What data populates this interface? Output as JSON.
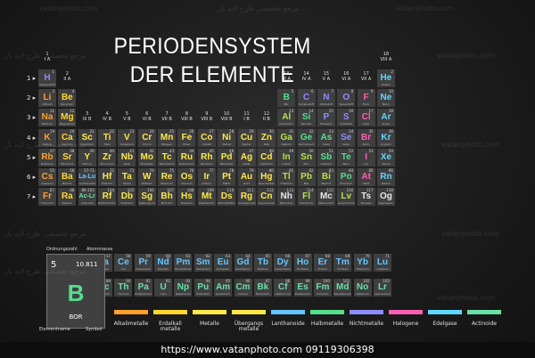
{
  "title": {
    "line1": "PERIODENSYSTEM",
    "line2": "DER ELEMENTE"
  },
  "watermarks": [
    "vatanphoto.com",
    "مرجع تخصصی طرح لایه باز"
  ],
  "group_labels": [
    {
      "g": 1,
      "num": "1",
      "roman": "I A"
    },
    {
      "g": 2,
      "num": "2",
      "roman": "II A"
    },
    {
      "g": 3,
      "num": "3",
      "roman": "III B"
    },
    {
      "g": 4,
      "num": "4",
      "roman": "IV B"
    },
    {
      "g": 5,
      "num": "5",
      "roman": "V B"
    },
    {
      "g": 6,
      "num": "6",
      "roman": "VI B"
    },
    {
      "g": 7,
      "num": "7",
      "roman": "VII B"
    },
    {
      "g": 8,
      "num": "8",
      "roman": "VIII B"
    },
    {
      "g": 9,
      "num": "9",
      "roman": "VIII B"
    },
    {
      "g": 10,
      "num": "10",
      "roman": "VIII B"
    },
    {
      "g": 11,
      "num": "11",
      "roman": "I B"
    },
    {
      "g": 12,
      "num": "12",
      "roman": "II B"
    },
    {
      "g": 13,
      "num": "13",
      "roman": "III A"
    },
    {
      "g": 14,
      "num": "14",
      "roman": "IV A"
    },
    {
      "g": 15,
      "num": "15",
      "roman": "V A"
    },
    {
      "g": 16,
      "num": "16",
      "roman": "VI A"
    },
    {
      "g": 17,
      "num": "17",
      "roman": "VII A"
    },
    {
      "g": 18,
      "num": "18",
      "roman": "VIII A"
    }
  ],
  "period_labels": [
    "1",
    "2",
    "3",
    "4",
    "5",
    "6",
    "7"
  ],
  "categories": {
    "alkali": "#ff9f2f",
    "alkaline": "#ffd52e",
    "transition": "#ffe84a",
    "post": "#b6e24a",
    "metalloid": "#54e08a",
    "nonmetal": "#8f8cff",
    "halogen": "#ff5fb4",
    "noble": "#5fd7ff",
    "lanthanide": "#65c6ff",
    "actinide": "#69e0a6",
    "unknown": "#e8e8e8"
  },
  "elements": [
    {
      "n": 1,
      "s": "H",
      "name": "Wasserstoff",
      "p": 1,
      "g": 1,
      "c": "nonmetal"
    },
    {
      "n": 2,
      "s": "He",
      "name": "Helium",
      "p": 1,
      "g": 18,
      "c": "noble"
    },
    {
      "n": 3,
      "s": "Li",
      "name": "Lithium",
      "p": 2,
      "g": 1,
      "c": "alkali"
    },
    {
      "n": 4,
      "s": "Be",
      "name": "Beryllium",
      "p": 2,
      "g": 2,
      "c": "alkaline"
    },
    {
      "n": 5,
      "s": "B",
      "name": "Bor",
      "p": 2,
      "g": 13,
      "c": "metalloid"
    },
    {
      "n": 6,
      "s": "C",
      "name": "Kohlenstoff",
      "p": 2,
      "g": 14,
      "c": "nonmetal"
    },
    {
      "n": 7,
      "s": "N",
      "name": "Stickstoff",
      "p": 2,
      "g": 15,
      "c": "nonmetal"
    },
    {
      "n": 8,
      "s": "O",
      "name": "Sauerstoff",
      "p": 2,
      "g": 16,
      "c": "nonmetal"
    },
    {
      "n": 9,
      "s": "F",
      "name": "Fluor",
      "p": 2,
      "g": 17,
      "c": "halogen"
    },
    {
      "n": 10,
      "s": "Ne",
      "name": "Neon",
      "p": 2,
      "g": 18,
      "c": "noble"
    },
    {
      "n": 11,
      "s": "Na",
      "name": "Natrium",
      "p": 3,
      "g": 1,
      "c": "alkali"
    },
    {
      "n": 12,
      "s": "Mg",
      "name": "Magnesium",
      "p": 3,
      "g": 2,
      "c": "alkaline"
    },
    {
      "n": 13,
      "s": "Al",
      "name": "Aluminium",
      "p": 3,
      "g": 13,
      "c": "post"
    },
    {
      "n": 14,
      "s": "Si",
      "name": "Silicium",
      "p": 3,
      "g": 14,
      "c": "metalloid"
    },
    {
      "n": 15,
      "s": "P",
      "name": "Phosphor",
      "p": 3,
      "g": 15,
      "c": "nonmetal"
    },
    {
      "n": 16,
      "s": "S",
      "name": "Schwefel",
      "p": 3,
      "g": 16,
      "c": "nonmetal"
    },
    {
      "n": 17,
      "s": "Cl",
      "name": "Chlor",
      "p": 3,
      "g": 17,
      "c": "halogen"
    },
    {
      "n": 18,
      "s": "Ar",
      "name": "Argon",
      "p": 3,
      "g": 18,
      "c": "noble"
    },
    {
      "n": 19,
      "s": "K",
      "name": "Kalium",
      "p": 4,
      "g": 1,
      "c": "alkali"
    },
    {
      "n": 20,
      "s": "Ca",
      "name": "Calcium",
      "p": 4,
      "g": 2,
      "c": "alkaline"
    },
    {
      "n": 21,
      "s": "Sc",
      "name": "Scandium",
      "p": 4,
      "g": 3,
      "c": "transition"
    },
    {
      "n": 22,
      "s": "Ti",
      "name": "Titan",
      "p": 4,
      "g": 4,
      "c": "transition"
    },
    {
      "n": 23,
      "s": "V",
      "name": "Vanadium",
      "p": 4,
      "g": 5,
      "c": "transition"
    },
    {
      "n": 24,
      "s": "Cr",
      "name": "Chrom",
      "p": 4,
      "g": 6,
      "c": "transition"
    },
    {
      "n": 25,
      "s": "Mn",
      "name": "Mangan",
      "p": 4,
      "g": 7,
      "c": "transition"
    },
    {
      "n": 26,
      "s": "Fe",
      "name": "Eisen",
      "p": 4,
      "g": 8,
      "c": "transition"
    },
    {
      "n": 27,
      "s": "Co",
      "name": "Cobalt",
      "p": 4,
      "g": 9,
      "c": "transition"
    },
    {
      "n": 28,
      "s": "Ni",
      "name": "Nickel",
      "p": 4,
      "g": 10,
      "c": "transition"
    },
    {
      "n": 29,
      "s": "Cu",
      "name": "Kupfer",
      "p": 4,
      "g": 11,
      "c": "transition"
    },
    {
      "n": 30,
      "s": "Zn",
      "name": "Zink",
      "p": 4,
      "g": 12,
      "c": "transition"
    },
    {
      "n": 31,
      "s": "Ga",
      "name": "Gallium",
      "p": 4,
      "g": 13,
      "c": "post"
    },
    {
      "n": 32,
      "s": "Ge",
      "name": "Germanium",
      "p": 4,
      "g": 14,
      "c": "metalloid"
    },
    {
      "n": 33,
      "s": "As",
      "name": "Arsen",
      "p": 4,
      "g": 15,
      "c": "metalloid"
    },
    {
      "n": 34,
      "s": "Se",
      "name": "Selen",
      "p": 4,
      "g": 16,
      "c": "nonmetal"
    },
    {
      "n": 35,
      "s": "Br",
      "name": "Brom",
      "p": 4,
      "g": 17,
      "c": "halogen"
    },
    {
      "n": 36,
      "s": "Kr",
      "name": "Krypton",
      "p": 4,
      "g": 18,
      "c": "noble"
    },
    {
      "n": 37,
      "s": "Rb",
      "name": "Rubidium",
      "p": 5,
      "g": 1,
      "c": "alkali"
    },
    {
      "n": 38,
      "s": "Sr",
      "name": "Strontium",
      "p": 5,
      "g": 2,
      "c": "alkaline"
    },
    {
      "n": 39,
      "s": "Y",
      "name": "Yttrium",
      "p": 5,
      "g": 3,
      "c": "transition"
    },
    {
      "n": 40,
      "s": "Zr",
      "name": "Zirconium",
      "p": 5,
      "g": 4,
      "c": "transition"
    },
    {
      "n": 41,
      "s": "Nb",
      "name": "Niob",
      "p": 5,
      "g": 5,
      "c": "transition"
    },
    {
      "n": 42,
      "s": "Mo",
      "name": "Molybdän",
      "p": 5,
      "g": 6,
      "c": "transition"
    },
    {
      "n": 43,
      "s": "Tc",
      "name": "Technetium",
      "p": 5,
      "g": 7,
      "c": "transition"
    },
    {
      "n": 44,
      "s": "Ru",
      "name": "Ruthenium",
      "p": 5,
      "g": 8,
      "c": "transition"
    },
    {
      "n": 45,
      "s": "Rh",
      "name": "Rhodium",
      "p": 5,
      "g": 9,
      "c": "transition"
    },
    {
      "n": 46,
      "s": "Pd",
      "name": "Palladium",
      "p": 5,
      "g": 10,
      "c": "transition"
    },
    {
      "n": 47,
      "s": "Ag",
      "name": "Silber",
      "p": 5,
      "g": 11,
      "c": "transition"
    },
    {
      "n": 48,
      "s": "Cd",
      "name": "Cadmium",
      "p": 5,
      "g": 12,
      "c": "transition"
    },
    {
      "n": 49,
      "s": "In",
      "name": "Indium",
      "p": 5,
      "g": 13,
      "c": "post"
    },
    {
      "n": 50,
      "s": "Sn",
      "name": "Zinn",
      "p": 5,
      "g": 14,
      "c": "post"
    },
    {
      "n": 51,
      "s": "Sb",
      "name": "Antimon",
      "p": 5,
      "g": 15,
      "c": "metalloid"
    },
    {
      "n": 52,
      "s": "Te",
      "name": "Tellur",
      "p": 5,
      "g": 16,
      "c": "metalloid"
    },
    {
      "n": 53,
      "s": "I",
      "name": "Iod",
      "p": 5,
      "g": 17,
      "c": "halogen"
    },
    {
      "n": 54,
      "s": "Xe",
      "name": "Xenon",
      "p": 5,
      "g": 18,
      "c": "noble"
    },
    {
      "n": 55,
      "s": "Cs",
      "name": "Caesium",
      "p": 6,
      "g": 1,
      "c": "alkali"
    },
    {
      "n": 56,
      "s": "Ba",
      "name": "Barium",
      "p": 6,
      "g": 2,
      "c": "alkaline"
    },
    {
      "n": "57-71",
      "s": "La-Lu",
      "name": "Lanthanoide",
      "p": 6,
      "g": 3,
      "c": "lanthanide"
    },
    {
      "n": 72,
      "s": "Hf",
      "name": "Hafnium",
      "p": 6,
      "g": 4,
      "c": "transition"
    },
    {
      "n": 73,
      "s": "Ta",
      "name": "Tantal",
      "p": 6,
      "g": 5,
      "c": "transition"
    },
    {
      "n": 74,
      "s": "W",
      "name": "Wolfram",
      "p": 6,
      "g": 6,
      "c": "transition"
    },
    {
      "n": 75,
      "s": "Re",
      "name": "Rhenium",
      "p": 6,
      "g": 7,
      "c": "transition"
    },
    {
      "n": 76,
      "s": "Os",
      "name": "Osmium",
      "p": 6,
      "g": 8,
      "c": "transition"
    },
    {
      "n": 77,
      "s": "Ir",
      "name": "Iridium",
      "p": 6,
      "g": 9,
      "c": "transition"
    },
    {
      "n": 78,
      "s": "Pt",
      "name": "Platin",
      "p": 6,
      "g": 10,
      "c": "transition"
    },
    {
      "n": 79,
      "s": "Au",
      "name": "Gold",
      "p": 6,
      "g": 11,
      "c": "transition"
    },
    {
      "n": 80,
      "s": "Hg",
      "name": "Quecksilber",
      "p": 6,
      "g": 12,
      "c": "transition"
    },
    {
      "n": 81,
      "s": "Tl",
      "name": "Thallium",
      "p": 6,
      "g": 13,
      "c": "post"
    },
    {
      "n": 82,
      "s": "Pb",
      "name": "Blei",
      "p": 6,
      "g": 14,
      "c": "post"
    },
    {
      "n": 83,
      "s": "Bi",
      "name": "Bismut",
      "p": 6,
      "g": 15,
      "c": "post"
    },
    {
      "n": 84,
      "s": "Po",
      "name": "Polonium",
      "p": 6,
      "g": 16,
      "c": "metalloid"
    },
    {
      "n": 85,
      "s": "At",
      "name": "Astat",
      "p": 6,
      "g": 17,
      "c": "halogen"
    },
    {
      "n": 86,
      "s": "Rn",
      "name": "Radon",
      "p": 6,
      "g": 18,
      "c": "noble"
    },
    {
      "n": 87,
      "s": "Fr",
      "name": "Francium",
      "p": 7,
      "g": 1,
      "c": "alkali"
    },
    {
      "n": 88,
      "s": "Ra",
      "name": "Radium",
      "p": 7,
      "g": 2,
      "c": "alkaline"
    },
    {
      "n": "89-103",
      "s": "Ac-Lr",
      "name": "Actinoide",
      "p": 7,
      "g": 3,
      "c": "actinide"
    },
    {
      "n": 104,
      "s": "Rf",
      "name": "Rutherfordium",
      "p": 7,
      "g": 4,
      "c": "transition"
    },
    {
      "n": 105,
      "s": "Db",
      "name": "Dubnium",
      "p": 7,
      "g": 5,
      "c": "transition"
    },
    {
      "n": 106,
      "s": "Sg",
      "name": "Seaborgium",
      "p": 7,
      "g": 6,
      "c": "transition"
    },
    {
      "n": 107,
      "s": "Bh",
      "name": "Bohrium",
      "p": 7,
      "g": 7,
      "c": "transition"
    },
    {
      "n": 108,
      "s": "Hs",
      "name": "Hassium",
      "p": 7,
      "g": 8,
      "c": "transition"
    },
    {
      "n": 109,
      "s": "Mt",
      "name": "Meitnerium",
      "p": 7,
      "g": 9,
      "c": "transition"
    },
    {
      "n": 110,
      "s": "Ds",
      "name": "Darmstadtium",
      "p": 7,
      "g": 10,
      "c": "transition"
    },
    {
      "n": 111,
      "s": "Rg",
      "name": "Roentgenium",
      "p": 7,
      "g": 11,
      "c": "transition"
    },
    {
      "n": 112,
      "s": "Cn",
      "name": "Copernicium",
      "p": 7,
      "g": 12,
      "c": "transition"
    },
    {
      "n": 113,
      "s": "Nh",
      "name": "Nihonium",
      "p": 7,
      "g": 13,
      "c": "unknown"
    },
    {
      "n": 114,
      "s": "Fl",
      "name": "Flerovium",
      "p": 7,
      "g": 14,
      "c": "post"
    },
    {
      "n": 115,
      "s": "Mc",
      "name": "Moscovium",
      "p": 7,
      "g": 15,
      "c": "unknown"
    },
    {
      "n": 116,
      "s": "Lv",
      "name": "Livermorium",
      "p": 7,
      "g": 16,
      "c": "post"
    },
    {
      "n": 117,
      "s": "Ts",
      "name": "Tenness",
      "p": 7,
      "g": 17,
      "c": "unknown"
    },
    {
      "n": 118,
      "s": "Og",
      "name": "Oganesson",
      "p": 7,
      "g": 18,
      "c": "unknown"
    }
  ],
  "lanthanides": [
    {
      "n": 57,
      "s": "La",
      "name": "Lanthan"
    },
    {
      "n": 58,
      "s": "Ce",
      "name": "Cer"
    },
    {
      "n": 59,
      "s": "Pr",
      "name": "Praseodym"
    },
    {
      "n": 60,
      "s": "Nd",
      "name": "Neodym"
    },
    {
      "n": 61,
      "s": "Pm",
      "name": "Promethium"
    },
    {
      "n": 62,
      "s": "Sm",
      "name": "Samarium"
    },
    {
      "n": 63,
      "s": "Eu",
      "name": "Europium"
    },
    {
      "n": 64,
      "s": "Gd",
      "name": "Gadolinium"
    },
    {
      "n": 65,
      "s": "Tb",
      "name": "Terbium"
    },
    {
      "n": 66,
      "s": "Dy",
      "name": "Dysprosium"
    },
    {
      "n": 67,
      "s": "Ho",
      "name": "Holmium"
    },
    {
      "n": 68,
      "s": "Er",
      "name": "Erbium"
    },
    {
      "n": 69,
      "s": "Tm",
      "name": "Thulium"
    },
    {
      "n": 70,
      "s": "Yb",
      "name": "Ytterbium"
    },
    {
      "n": 71,
      "s": "Lu",
      "name": "Lutetium"
    }
  ],
  "actinides": [
    {
      "n": 89,
      "s": "Ac",
      "name": "Actinium"
    },
    {
      "n": 90,
      "s": "Th",
      "name": "Thorium"
    },
    {
      "n": 91,
      "s": "Pa",
      "name": "Protactinium"
    },
    {
      "n": 92,
      "s": "U",
      "name": "Uran"
    },
    {
      "n": 93,
      "s": "Np",
      "name": "Neptunium"
    },
    {
      "n": 94,
      "s": "Pu",
      "name": "Plutonium"
    },
    {
      "n": 95,
      "s": "Am",
      "name": "Americium"
    },
    {
      "n": 96,
      "s": "Cm",
      "name": "Curium"
    },
    {
      "n": 97,
      "s": "Bk",
      "name": "Berkelium"
    },
    {
      "n": 98,
      "s": "Cf",
      "name": "Californium"
    },
    {
      "n": 99,
      "s": "Es",
      "name": "Einsteinium"
    },
    {
      "n": 100,
      "s": "Fm",
      "name": "Fermium"
    },
    {
      "n": 101,
      "s": "Md",
      "name": "Mendelevium"
    },
    {
      "n": 102,
      "s": "No",
      "name": "Nobelium"
    },
    {
      "n": 103,
      "s": "Lr",
      "name": "Lawrencium"
    }
  ],
  "key": {
    "ordnungszahl_label": "Ordnungszahl",
    "atommasse_label": "Atommasse",
    "number": "5",
    "mass": "10.811",
    "symbol": "B",
    "name": "BOR",
    "elementname_label": "Elementname",
    "symbol_label": "Symbol"
  },
  "legend": [
    {
      "label": "Alkalimetalle",
      "color": "#ff9f2f"
    },
    {
      "label": "Erdalkali metalle",
      "color": "#ffd52e"
    },
    {
      "label": "Metalle",
      "color": "#ffe84a"
    },
    {
      "label": "Übergangs metalle",
      "color": "#ffe84a"
    },
    {
      "label": "Lanthanoide",
      "color": "#65c6ff"
    },
    {
      "label": "Halbmetalle",
      "color": "#54e08a"
    },
    {
      "label": "Nichtmetalle",
      "color": "#8f8cff"
    },
    {
      "label": "Halogene",
      "color": "#ff5fb4"
    },
    {
      "label": "Edelgase",
      "color": "#5fd7ff"
    },
    {
      "label": "Actinoide",
      "color": "#69e0a6"
    }
  ],
  "footer": {
    "text": "https://www.vatanphoto.com   09119306398"
  }
}
